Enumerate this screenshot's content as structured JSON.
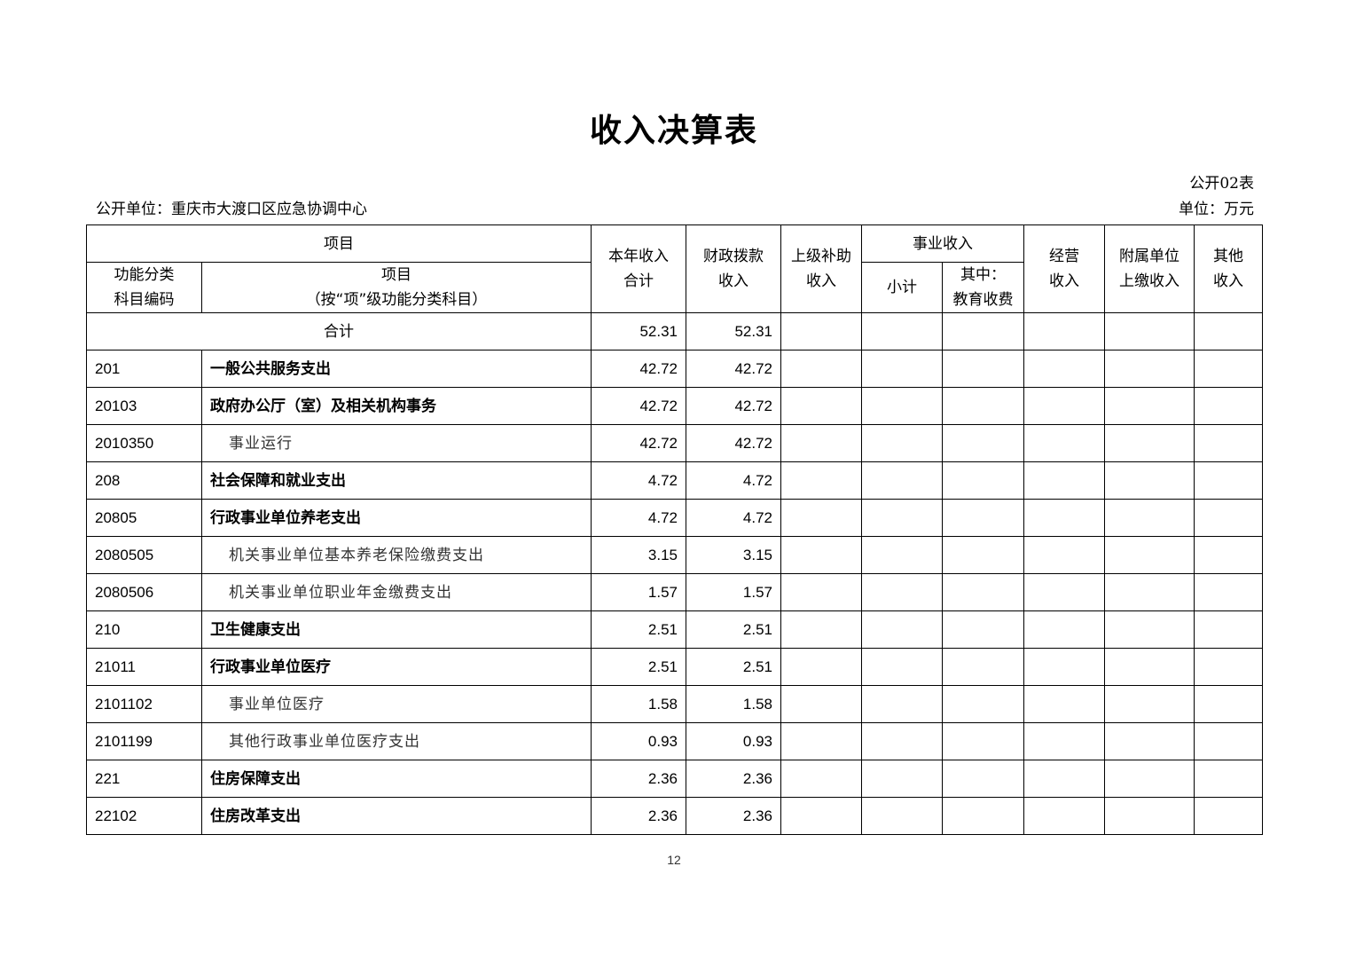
{
  "title": "收入决算表",
  "form_no": "公开02表",
  "org": "公开单位：重庆市大渡口区应急协调中心",
  "unit": "单位：万元",
  "headers": {
    "item": "项目",
    "code": "功能分类科目编码",
    "code_l1": "功能分类",
    "code_l2": "科目编码",
    "name_l1": "项目",
    "name_l2": "（按“项”级功能分类科目）",
    "total_l1": "本年收入",
    "total_l2": "合计",
    "fiscal_l1": "财政拨款",
    "fiscal_l2": "收入",
    "upper_l1": "上级补助",
    "upper_l2": "收入",
    "business": "事业收入",
    "subtotal": "小计",
    "edu_l1": "其中：",
    "edu_l2": "教育收费",
    "operating_l1": "经营",
    "operating_l2": "收入",
    "affiliate_l1": "附属单位",
    "affiliate_l2": "上缴收入",
    "other_l1": "其他",
    "other_l2": "收入"
  },
  "total_row": {
    "label": "合计",
    "total": "52.31",
    "fiscal": "52.31"
  },
  "rows": [
    {
      "code": "201",
      "name": "一般公共服务支出",
      "level": 1,
      "total": "42.72",
      "fiscal": "42.72"
    },
    {
      "code": "20103",
      "name": "政府办公厅（室）及相关机构事务",
      "level": 2,
      "total": "42.72",
      "fiscal": "42.72"
    },
    {
      "code": "2010350",
      "name": "事业运行",
      "level": 3,
      "total": "42.72",
      "fiscal": "42.72"
    },
    {
      "code": "208",
      "name": "社会保障和就业支出",
      "level": 1,
      "total": "4.72",
      "fiscal": "4.72"
    },
    {
      "code": "20805",
      "name": "行政事业单位养老支出",
      "level": 2,
      "total": "4.72",
      "fiscal": "4.72"
    },
    {
      "code": "2080505",
      "name": "机关事业单位基本养老保险缴费支出",
      "level": 3,
      "total": "3.15",
      "fiscal": "3.15"
    },
    {
      "code": "2080506",
      "name": "机关事业单位职业年金缴费支出",
      "level": 3,
      "total": "1.57",
      "fiscal": "1.57"
    },
    {
      "code": "210",
      "name": "卫生健康支出",
      "level": 1,
      "total": "2.51",
      "fiscal": "2.51"
    },
    {
      "code": "21011",
      "name": "行政事业单位医疗",
      "level": 2,
      "total": "2.51",
      "fiscal": "2.51"
    },
    {
      "code": "2101102",
      "name": "事业单位医疗",
      "level": 3,
      "total": "1.58",
      "fiscal": "1.58"
    },
    {
      "code": "2101199",
      "name": "其他行政事业单位医疗支出",
      "level": 3,
      "total": "0.93",
      "fiscal": "0.93"
    },
    {
      "code": "221",
      "name": "住房保障支出",
      "level": 1,
      "total": "2.36",
      "fiscal": "2.36"
    },
    {
      "code": "22102",
      "name": "住房改革支出",
      "level": 2,
      "total": "2.36",
      "fiscal": "2.36"
    }
  ],
  "page_number": "12"
}
